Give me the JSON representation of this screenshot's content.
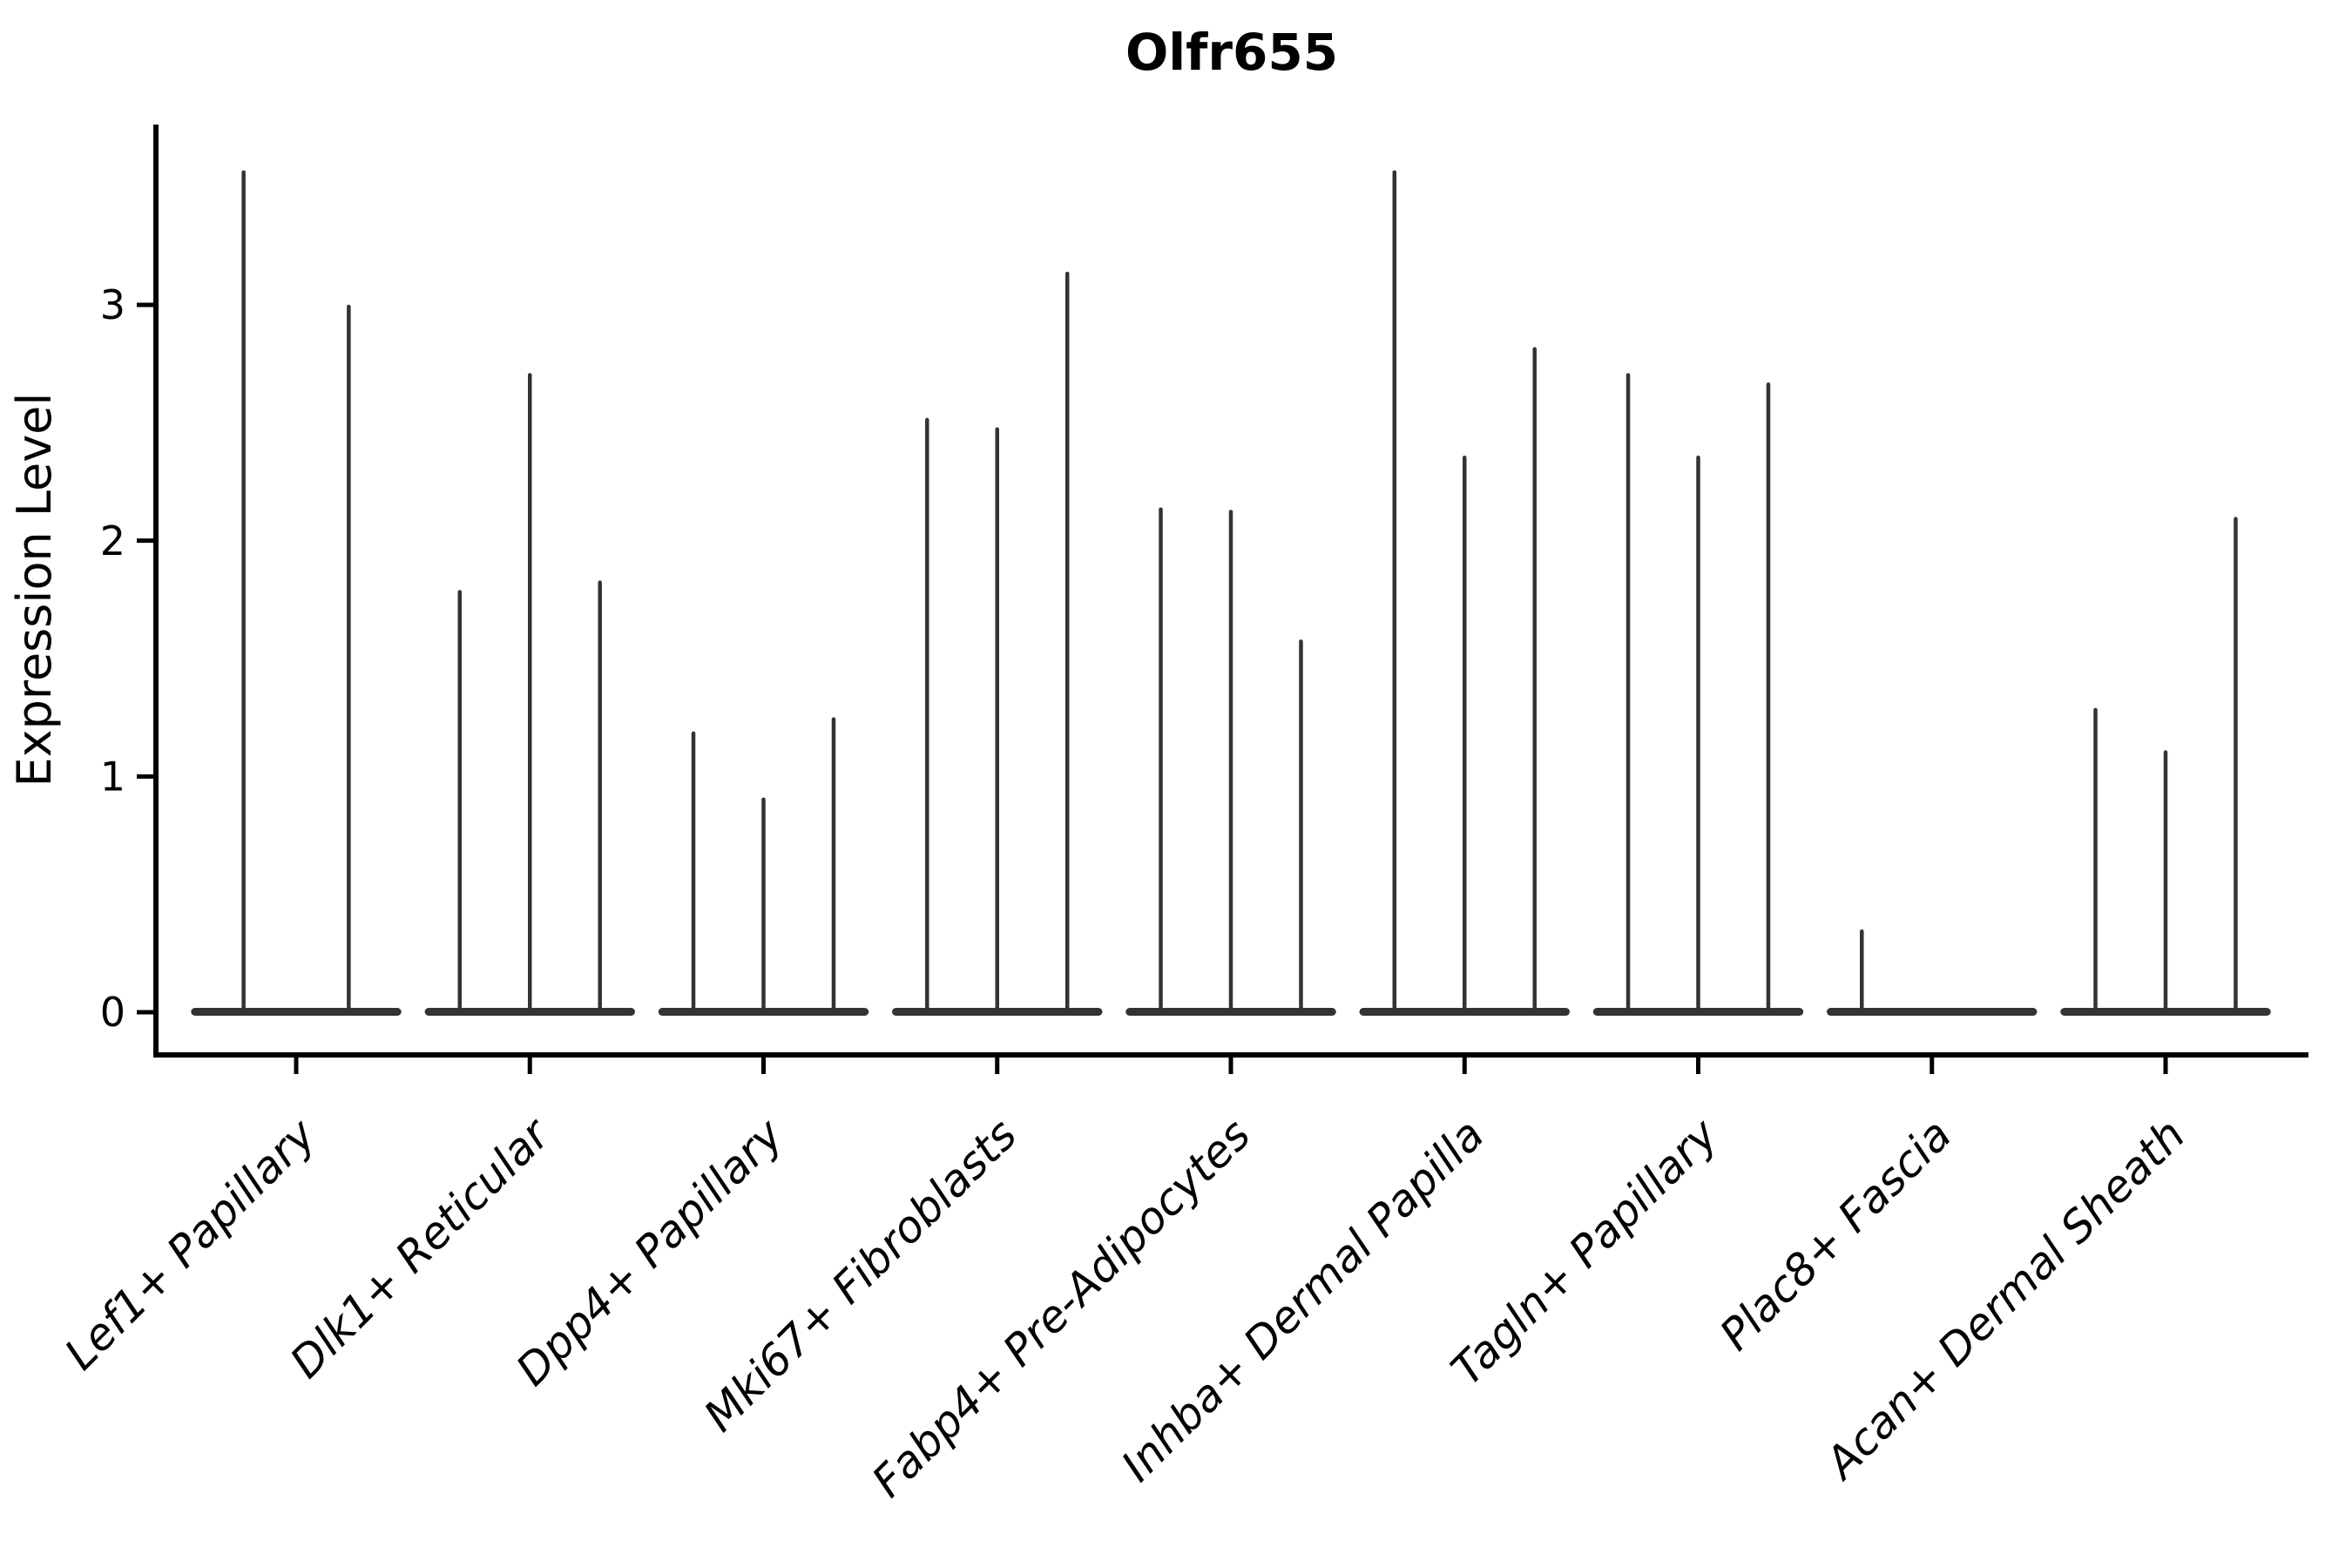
{
  "chart_data": {
    "type": "violin",
    "title": "Olfr655",
    "ylabel": "Expression Level",
    "xlabel": "",
    "yticks": [
      "0",
      "1",
      "2",
      "3"
    ],
    "ytick_values": [
      0,
      1,
      2,
      3
    ],
    "ylim": [
      -0.18,
      3.77
    ],
    "grid": false,
    "legend": "none",
    "violin_color": "#333333",
    "axis_color": "#000000",
    "description": "Sparse violin plot: each cell-type group shows a flat basal band at 0 with thin needle spikes; spike tips give the maximum expression per violin",
    "groups": [
      {
        "label": "Lef1+ Papillary",
        "violin_peaks": [
          3.57,
          3.0
        ]
      },
      {
        "label": "Dlk1+ Reticular",
        "violin_peaks": [
          1.79,
          2.71,
          1.83
        ]
      },
      {
        "label": "Dpp4+ Papillary",
        "violin_peaks": [
          1.19,
          0.91,
          1.25
        ]
      },
      {
        "label": "Mki67+ Fibroblasts",
        "violin_peaks": [
          2.52,
          2.48,
          3.14
        ]
      },
      {
        "label": "Fabp4+ Pre-Adipocytes",
        "violin_peaks": [
          2.14,
          2.13,
          1.58
        ]
      },
      {
        "label": "Inhba+ Dermal Papilla",
        "violin_peaks": [
          3.57,
          2.36,
          2.82
        ]
      },
      {
        "label": "Tagln+ Papillary",
        "violin_peaks": [
          2.71,
          2.36,
          2.67
        ]
      },
      {
        "label": "Plac8+ Fascia",
        "violin_peaks": [
          0.35,
          0,
          0
        ]
      },
      {
        "label": "Acan+ Dermal Sheath",
        "violin_peaks": [
          1.29,
          1.11,
          2.1
        ]
      }
    ]
  }
}
